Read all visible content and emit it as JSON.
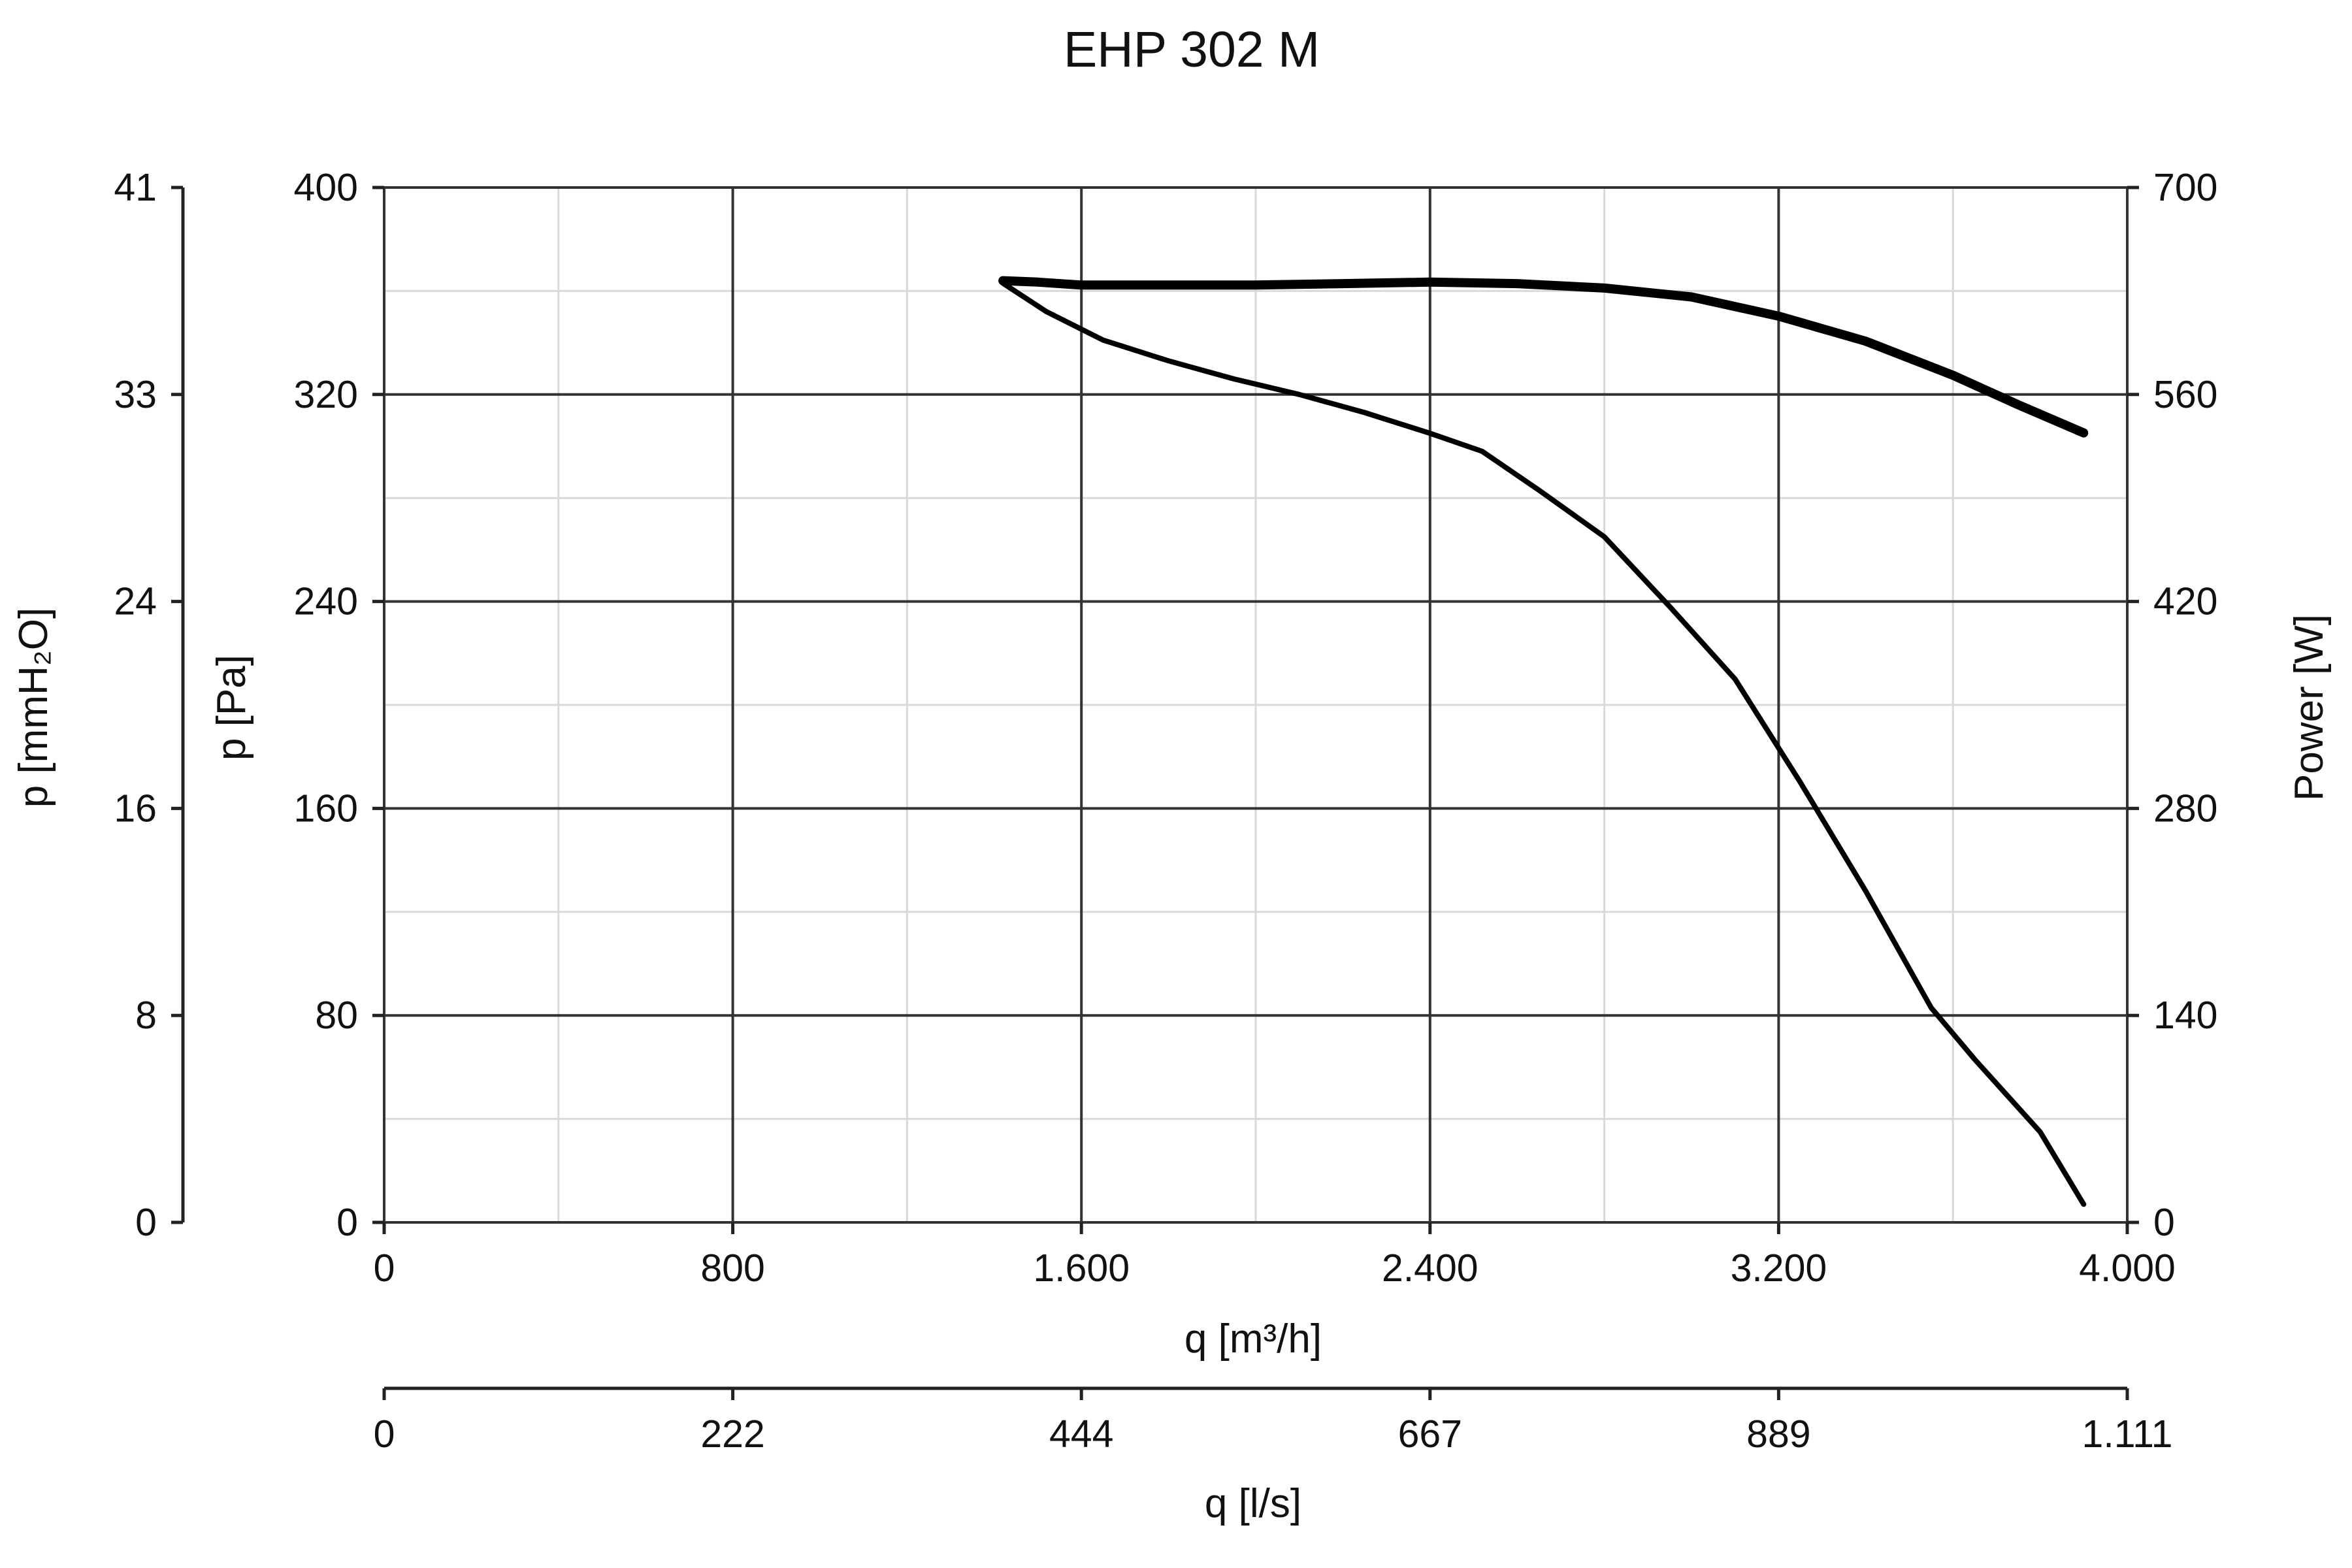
{
  "chart_data": {
    "type": "line",
    "title": "EHP 302 M",
    "xlabel": "q [m³/h]",
    "xlim": [
      0,
      4000
    ],
    "x_ticks": [
      0,
      800,
      1600,
      2400,
      3200,
      4000
    ],
    "x_tick_labels": [
      "0",
      "800",
      "1.600",
      "2.400",
      "3.200",
      "4.000"
    ],
    "x2label": "q [l/s]",
    "x2_tick_labels": [
      "0",
      "222",
      "444",
      "667",
      "889",
      "1.111"
    ],
    "ylabel": "p [Pa]",
    "ylim": [
      0,
      400
    ],
    "y_ticks": [
      0,
      80,
      160,
      240,
      320,
      400
    ],
    "y_tick_labels": [
      "0",
      "80",
      "160",
      "240",
      "320",
      "400"
    ],
    "y_left_outer_label": "p [mmH₂O]",
    "y_left_outer_tick_labels": [
      "0",
      "8",
      "16",
      "24",
      "33",
      "41"
    ],
    "y2label": "Power [W]",
    "y2lim": [
      0,
      700
    ],
    "y2_ticks": [
      0,
      140,
      280,
      420,
      560,
      700
    ],
    "y2_tick_labels": [
      "0",
      "140",
      "280",
      "420",
      "560",
      "700"
    ],
    "grid": true,
    "colors": {
      "line": "#000000",
      "major_grid": "#333333",
      "minor_grid": "#d9d9d9"
    },
    "series": [
      {
        "axis": "left",
        "values": [
          [
            1420,
            363
          ],
          [
            1520,
            352
          ],
          [
            1650,
            341
          ],
          [
            1800,
            333
          ],
          [
            1950,
            326
          ],
          [
            2100,
            320
          ],
          [
            2250,
            313
          ],
          [
            2400,
            305
          ],
          [
            2520,
            298
          ],
          [
            2650,
            283
          ],
          [
            2800,
            265
          ],
          [
            2950,
            238
          ],
          [
            3100,
            210
          ],
          [
            3250,
            170
          ],
          [
            3400,
            128
          ],
          [
            3550,
            83
          ],
          [
            3650,
            63
          ],
          [
            3800,
            35
          ],
          [
            3900,
            7
          ]
        ]
      },
      {
        "axis": "right",
        "values": [
          [
            1420,
            637
          ],
          [
            1500,
            636
          ],
          [
            1600,
            634
          ],
          [
            1800,
            634
          ],
          [
            2000,
            634
          ],
          [
            2200,
            635
          ],
          [
            2400,
            636
          ],
          [
            2600,
            635
          ],
          [
            2800,
            632
          ],
          [
            3000,
            626
          ],
          [
            3200,
            613
          ],
          [
            3400,
            596
          ],
          [
            3600,
            573
          ],
          [
            3750,
            553
          ],
          [
            3900,
            534
          ]
        ]
      }
    ]
  }
}
